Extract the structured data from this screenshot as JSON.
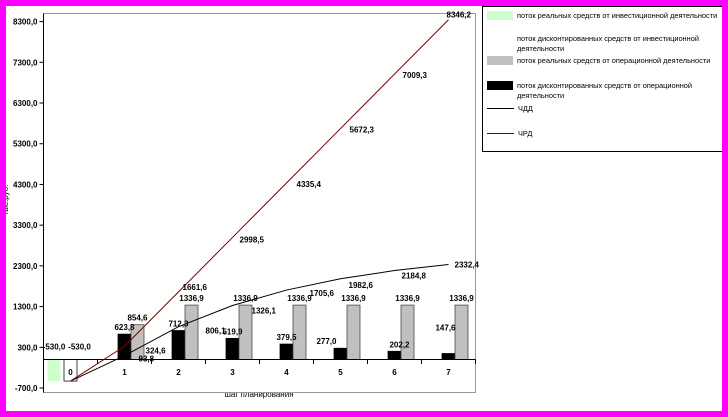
{
  "window": {
    "border_color": "#ff00ff",
    "background": "#ffffff"
  },
  "legend": {
    "items": [
      {
        "label": "поток реальных средств от инвестиционной деятельности",
        "kind": "box",
        "color": "#ccffcc"
      },
      {
        "label": "поток дисконтированных средств от инвестиционной деятельности",
        "kind": "box",
        "color": "#ffffff"
      },
      {
        "label": "поток реальных средств от операционной деятельности",
        "kind": "box",
        "color": "#c0c0c0"
      },
      {
        "label": "поток дисконтированных средств от операционной деятельности",
        "kind": "box",
        "color": "#000000"
      },
      {
        "label": "ЧДД",
        "kind": "line",
        "color": "#000000"
      },
      {
        "label": "ЧРД",
        "kind": "line",
        "color": "#800000"
      }
    ]
  },
  "chart_data": {
    "type": "bar+line combo",
    "categories": [
      "0",
      "1",
      "2",
      "3",
      "4",
      "5",
      "6",
      "7"
    ],
    "x_axis": {
      "title": "шаг планирования"
    },
    "y_axis": {
      "title": "тыс.руб.",
      "min": -700,
      "max": 8300,
      "step": 1000,
      "format": "decimal comma, one digit"
    },
    "grid": false,
    "legend_position": "top-right",
    "series": [
      {
        "name": "поток реальных средств от инвестиционной деятельности",
        "type": "bar",
        "color": "#ccffcc",
        "values": [
          -530.0,
          null,
          null,
          null,
          null,
          null,
          null,
          null
        ]
      },
      {
        "name": "поток дисконтированных средств от инвестиционной деятельности",
        "type": "bar",
        "color": "#ffffff",
        "values": [
          -530.0,
          null,
          null,
          null,
          null,
          null,
          null,
          null
        ]
      },
      {
        "name": "поток дисконтированных средств от операционной деятельности",
        "type": "bar",
        "color": "#000000",
        "values": [
          null,
          623.8,
          712.3,
          519.9,
          379.5,
          277.0,
          202.2,
          147.6
        ]
      },
      {
        "name": "поток реальных средств от операционной деятельности",
        "type": "bar",
        "color": "#c0c0c0",
        "values": [
          null,
          854.6,
          1336.9,
          1336.9,
          1336.9,
          1336.9,
          1336.9,
          1336.9
        ]
      },
      {
        "name": "ЧДД",
        "type": "line",
        "color": "#000000",
        "values": [
          -530.0,
          93.8,
          806.1,
          1326.1,
          1705.6,
          1982.6,
          2184.8,
          2332.4
        ]
      },
      {
        "name": "ЧРД",
        "type": "line",
        "color": "#800000",
        "values": [
          -530.0,
          324.6,
          1661.6,
          2998.5,
          4335.4,
          5672.3,
          7009.3,
          8346.2
        ]
      }
    ],
    "data_labels_visible": true
  }
}
